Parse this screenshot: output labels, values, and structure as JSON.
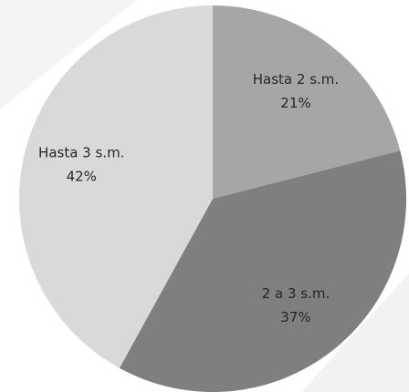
{
  "chart_data": {
    "type": "pie",
    "categories": [
      "Hasta 2 s.m.",
      "2 a 3 s.m.",
      "Hasta 3 s.m."
    ],
    "values": [
      21,
      37,
      42
    ],
    "value_labels": [
      "21%",
      "37%",
      "42%"
    ],
    "colors": [
      "#a6a6a6",
      "#7f7f7f",
      "#d9d9d9"
    ]
  }
}
